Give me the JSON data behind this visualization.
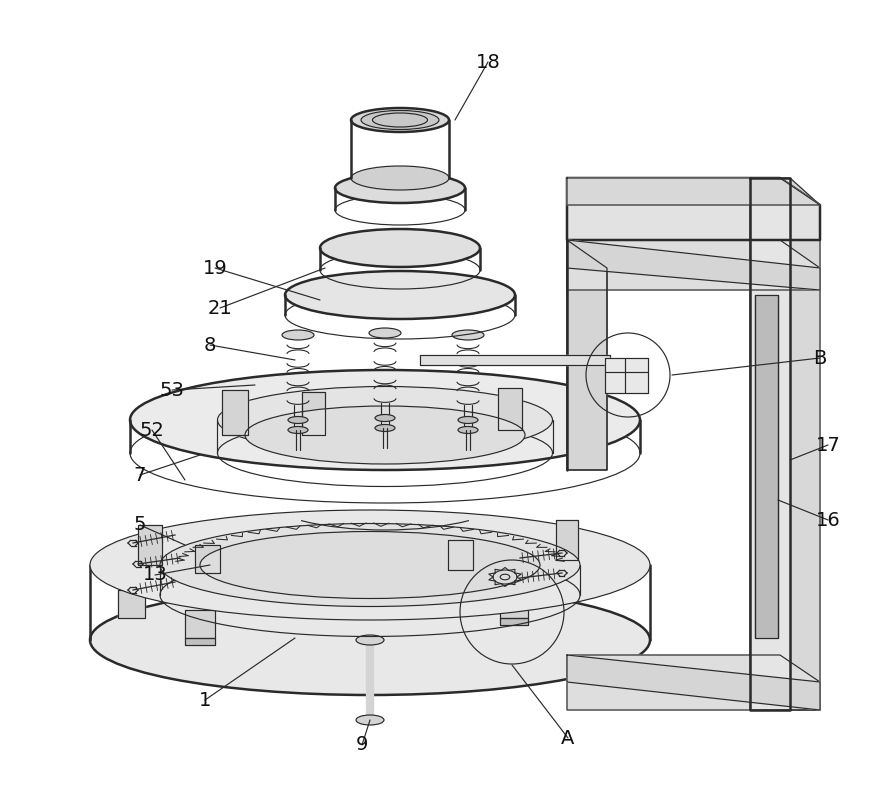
{
  "bg_color": "#ffffff",
  "lc": "#2a2a2a",
  "lw_main": 1.4,
  "lw_thin": 0.85,
  "lw_thick": 1.8,
  "gray_light": "#e8e8e8",
  "gray_mid": "#d4d4d4",
  "gray_dark": "#c0c0c0",
  "white": "#f5f5f5",
  "figw": 8.86,
  "figh": 7.87,
  "dpi": 100
}
